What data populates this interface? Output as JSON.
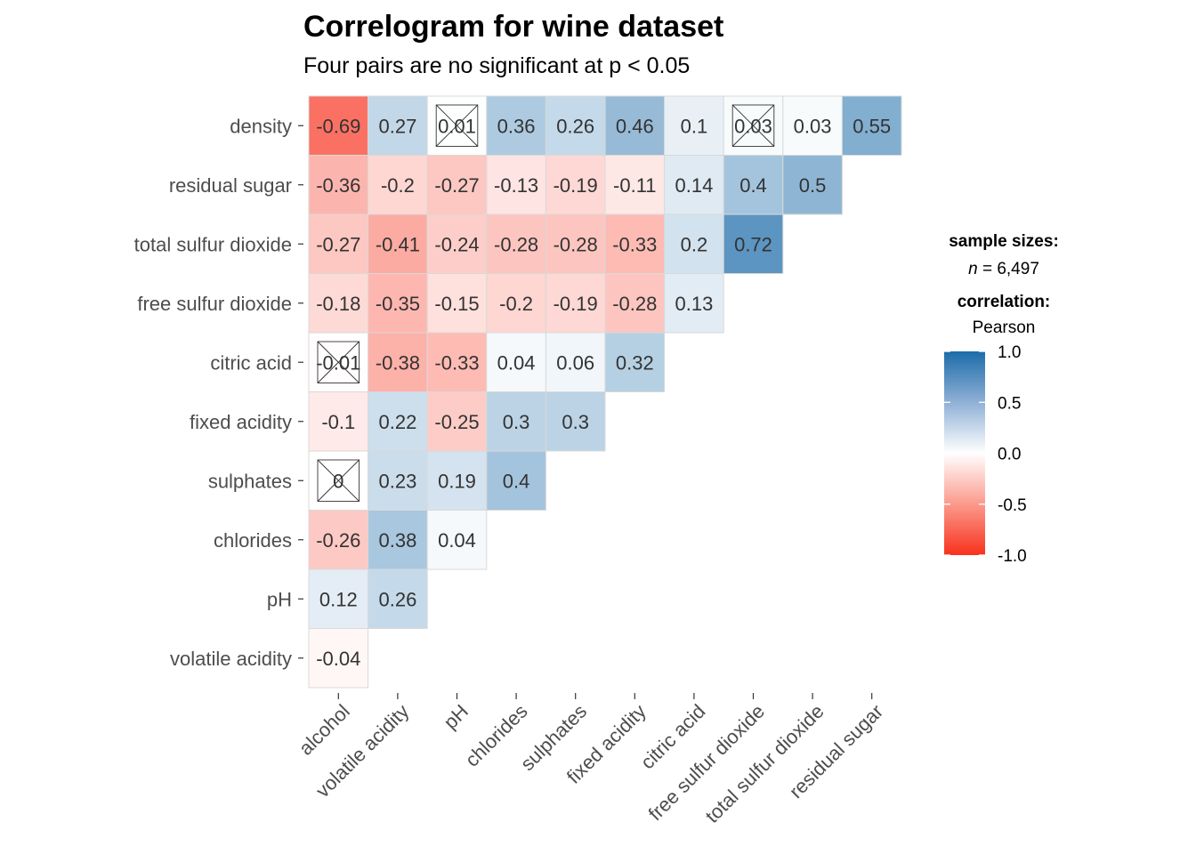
{
  "chart_data": {
    "type": "heatmap",
    "title": "Correlogram for wine dataset",
    "subtitle": "Four pairs are no significant at p < 0.05",
    "x_categories": [
      "alcohol",
      "volatile acidity",
      "pH",
      "chlorides",
      "sulphates",
      "fixed acidity",
      "citric acid",
      "free sulfur dioxide",
      "total sulfur dioxide",
      "residual sugar"
    ],
    "y_categories": [
      "density",
      "residual sugar",
      "total sulfur dioxide",
      "free sulfur dioxide",
      "citric acid",
      "fixed acidity",
      "sulphates",
      "chlorides",
      "pH",
      "volatile acidity"
    ],
    "values": [
      [
        -0.69,
        0.27,
        0.01,
        0.36,
        0.26,
        0.46,
        0.1,
        0.03,
        0.03,
        0.55
      ],
      [
        -0.36,
        -0.2,
        -0.27,
        -0.13,
        -0.19,
        -0.11,
        0.14,
        0.4,
        0.5,
        null
      ],
      [
        -0.27,
        -0.41,
        -0.24,
        -0.28,
        -0.28,
        -0.33,
        0.2,
        0.72,
        null,
        null
      ],
      [
        -0.18,
        -0.35,
        -0.15,
        -0.2,
        -0.19,
        -0.28,
        0.13,
        null,
        null,
        null
      ],
      [
        -0.01,
        -0.38,
        -0.33,
        0.04,
        0.06,
        0.32,
        null,
        null,
        null,
        null
      ],
      [
        -0.1,
        0.22,
        -0.25,
        0.3,
        0.3,
        null,
        null,
        null,
        null,
        null
      ],
      [
        0,
        0.23,
        0.19,
        0.4,
        null,
        null,
        null,
        null,
        null,
        null
      ],
      [
        -0.26,
        0.38,
        0.04,
        null,
        null,
        null,
        null,
        null,
        null,
        null
      ],
      [
        0.12,
        0.26,
        null,
        null,
        null,
        null,
        null,
        null,
        null,
        null
      ],
      [
        -0.04,
        null,
        null,
        null,
        null,
        null,
        null,
        null,
        null,
        null
      ]
    ],
    "non_significant": [
      [
        0,
        2
      ],
      [
        0,
        7
      ],
      [
        4,
        0
      ],
      [
        6,
        0
      ]
    ],
    "color_scale": {
      "low": "#f8311d",
      "mid": "#ffffff",
      "high": "#1c6ca9",
      "limits": [
        -1.0,
        1.0
      ]
    },
    "legend": {
      "sample_title": "sample sizes:",
      "n_label": "n",
      "n_value": " = 6,497",
      "corr_title": "correlation:",
      "method": "Pearson",
      "ticks": [
        "1.0",
        "0.5",
        "0.0",
        "-0.5",
        "-1.0"
      ],
      "tick_values": [
        1.0,
        0.5,
        0.0,
        -0.5,
        -1.0
      ],
      "placement": "right"
    }
  }
}
